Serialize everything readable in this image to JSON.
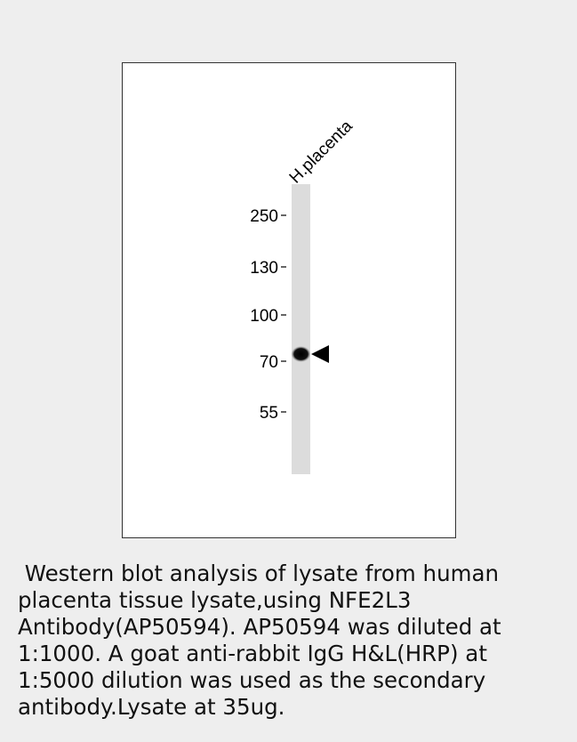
{
  "blot": {
    "lane_label": "H.placenta",
    "markers": [
      "250",
      "130",
      "100",
      "70",
      "55"
    ]
  },
  "caption": {
    "lines": [
      " Western blot analysis of lysate from human",
      "placenta tissue lysate,using NFE2L3",
      "Antibody(AP50594). AP50594 was diluted at",
      "1:1000. A goat anti-rabbit IgG H&L(HRP) at",
      "1:5000 dilution was used as the secondary",
      "antibody.Lysate at 35ug."
    ]
  }
}
